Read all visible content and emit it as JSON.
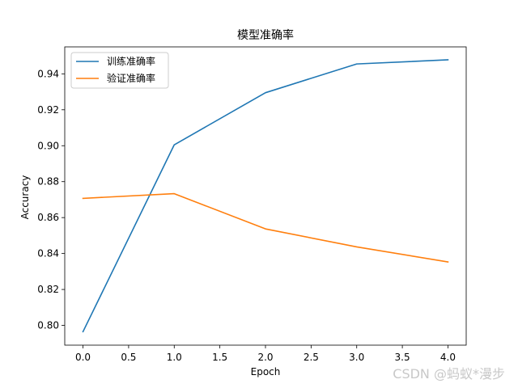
{
  "chart_data": {
    "type": "line",
    "title": "模型准确率",
    "xlabel": "Epoch",
    "ylabel": "Accuracy",
    "xlim": [
      -0.2,
      4.2
    ],
    "ylim": [
      0.789,
      0.955
    ],
    "xticks": [
      0.0,
      0.5,
      1.0,
      1.5,
      2.0,
      2.5,
      3.0,
      3.5,
      4.0
    ],
    "xtick_labels": [
      "0.0",
      "0.5",
      "1.0",
      "1.5",
      "2.0",
      "2.5",
      "3.0",
      "3.5",
      "4.0"
    ],
    "yticks": [
      0.8,
      0.82,
      0.84,
      0.86,
      0.88,
      0.9,
      0.92,
      0.94
    ],
    "ytick_labels": [
      "0.80",
      "0.82",
      "0.84",
      "0.86",
      "0.88",
      "0.90",
      "0.92",
      "0.94"
    ],
    "grid": false,
    "legend_position": "top-left",
    "series": [
      {
        "name": "训练准确率",
        "color": "#1f77b4",
        "x": [
          0,
          1,
          2,
          3,
          4
        ],
        "y": [
          0.7965,
          0.9005,
          0.9295,
          0.9455,
          0.9478
        ]
      },
      {
        "name": "验证准确率",
        "color": "#ff7f0e",
        "x": [
          0,
          1,
          2,
          3,
          4
        ],
        "y": [
          0.8707,
          0.8733,
          0.8537,
          0.8437,
          0.8353
        ]
      }
    ]
  },
  "watermark": "CSDN @蚂蚁*漫步"
}
